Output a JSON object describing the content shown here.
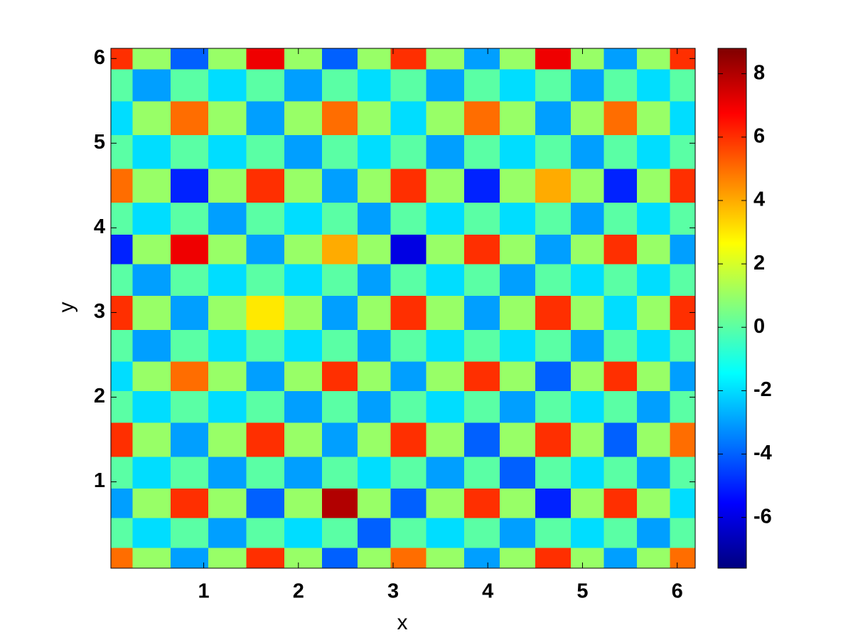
{
  "chart_data": {
    "type": "heatmap",
    "x_label": "x",
    "y_label": "y",
    "xlim": [
      0.02,
      6.19
    ],
    "ylim": [
      -0.02,
      6.12
    ],
    "xticks": [
      1,
      2,
      3,
      4,
      5,
      6
    ],
    "yticks": [
      1,
      2,
      3,
      4,
      5,
      6
    ],
    "colormap": "jet",
    "clim": [
      -7.6,
      8.8
    ],
    "colorbar_ticks": [
      -6,
      -4,
      -2,
      0,
      2,
      4,
      6,
      8
    ],
    "x": [
      0.05,
      0.45,
      0.85,
      1.25,
      1.65,
      2.05,
      2.45,
      2.8,
      3.15,
      3.55,
      3.95,
      4.3,
      4.7,
      5.05,
      5.4,
      5.75,
      6.1
    ],
    "y": [
      0.05,
      0.4,
      0.75,
      1.1,
      1.5,
      1.9,
      2.25,
      2.6,
      3.0,
      3.4,
      3.75,
      4.1,
      4.5,
      4.9,
      5.3,
      5.7,
      6.05
    ],
    "z": [
      [
        5,
        1,
        -3,
        1,
        6,
        1,
        -4,
        1,
        5,
        1,
        -3,
        1,
        6,
        1,
        -3,
        1,
        5
      ],
      [
        0,
        -2,
        0,
        -3,
        0,
        -2,
        0,
        -4,
        0,
        -2,
        0,
        -3,
        0,
        -2,
        0,
        -3,
        0
      ],
      [
        -3,
        1,
        6,
        1,
        -4,
        1,
        8,
        1,
        -4,
        1,
        6,
        1,
        -5,
        1,
        6,
        1,
        -2
      ],
      [
        0,
        -2,
        0,
        -3,
        0,
        -3,
        0,
        -2,
        0,
        -3,
        0,
        -4,
        0,
        -2,
        0,
        -3,
        0
      ],
      [
        6,
        1,
        -3,
        1,
        6,
        1,
        -3,
        1,
        6,
        1,
        -4,
        1,
        6,
        1,
        -4,
        1,
        5
      ],
      [
        0,
        -2,
        0,
        -2,
        0,
        -3,
        0,
        -3,
        0,
        -2,
        0,
        -3,
        0,
        -2,
        0,
        -3,
        0
      ],
      [
        -2,
        1,
        5,
        1,
        -3,
        1,
        6,
        1,
        -3,
        1,
        6,
        1,
        -4,
        1,
        6,
        1,
        -3
      ],
      [
        0,
        -3,
        0,
        -2,
        0,
        -2,
        0,
        -3,
        0,
        -2,
        0,
        -2,
        0,
        -3,
        0,
        -2,
        0
      ],
      [
        6,
        1,
        -3,
        1,
        3,
        1,
        -3,
        1,
        6,
        1,
        -3,
        1,
        6,
        1,
        -2,
        1,
        6
      ],
      [
        0,
        -3,
        0,
        -2,
        0,
        -2,
        0,
        -3,
        0,
        -2,
        0,
        -3,
        0,
        -2,
        0,
        -2,
        0
      ],
      [
        -5,
        1,
        7,
        1,
        -3,
        1,
        4,
        1,
        -6,
        1,
        6,
        1,
        -3,
        1,
        6,
        1,
        -3
      ],
      [
        0,
        -2,
        0,
        -3,
        0,
        -2,
        0,
        -3,
        0,
        -2,
        0,
        -2,
        0,
        -3,
        0,
        -2,
        0
      ],
      [
        5,
        1,
        -5,
        1,
        6,
        1,
        -3,
        1,
        6,
        1,
        -5,
        1,
        4,
        1,
        -5,
        1,
        6
      ],
      [
        0,
        -2,
        0,
        -2,
        0,
        -3,
        0,
        -2,
        0,
        -3,
        0,
        -2,
        0,
        -3,
        0,
        -2,
        0
      ],
      [
        -2,
        1,
        5,
        1,
        -3,
        1,
        5,
        1,
        -2,
        1,
        5,
        1,
        -3,
        1,
        5,
        1,
        -2
      ],
      [
        0,
        -3,
        0,
        -2,
        0,
        -3,
        0,
        -2,
        0,
        -3,
        0,
        -2,
        0,
        -3,
        0,
        -2,
        0
      ],
      [
        6,
        1,
        -4,
        1,
        7,
        1,
        -4,
        1,
        6,
        1,
        -3,
        1,
        7,
        1,
        -3,
        1,
        6
      ]
    ]
  }
}
